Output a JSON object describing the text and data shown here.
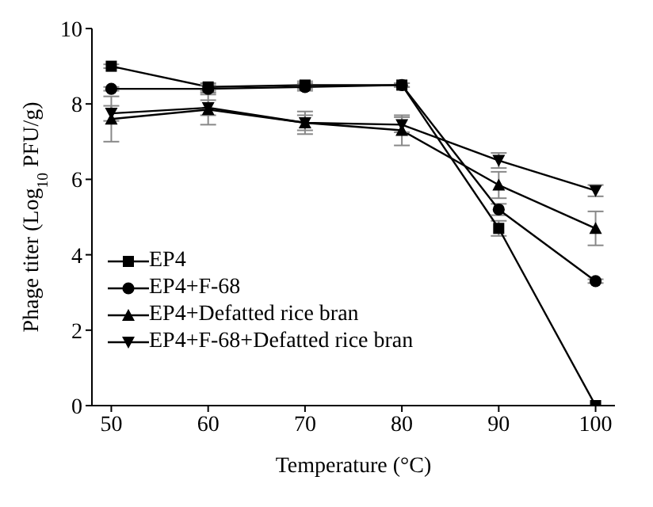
{
  "chart_data": {
    "type": "line",
    "xlabel": "Temperature (°C)",
    "ylabel": "Phage titer (Log$_{10}$ PFU/g)",
    "x": [
      50,
      60,
      70,
      80,
      90,
      100
    ],
    "xlim": [
      48,
      102
    ],
    "xticks": [
      50,
      60,
      70,
      80,
      90,
      100
    ],
    "ylim": [
      0,
      10
    ],
    "yticks": [
      0,
      2,
      4,
      6,
      8,
      10
    ],
    "legend": "left",
    "grid": false,
    "series": [
      {
        "name": "EP4",
        "color": "#000000",
        "marker": "square",
        "values": [
          9.0,
          8.45,
          8.5,
          8.5,
          4.7,
          0
        ],
        "errors": [
          0.05,
          0.1,
          0.1,
          0.05,
          0.2,
          null
        ]
      },
      {
        "name": "EP4+F-68",
        "color": "#000000",
        "marker": "circle",
        "values": [
          8.4,
          8.4,
          8.45,
          8.5,
          5.2,
          3.3
        ],
        "errors": [
          0.05,
          0.1,
          0.1,
          0.05,
          0.15,
          0.05
        ]
      },
      {
        "name": "EP4+Defatted rice bran",
        "color": "#000000",
        "marker": "triangle",
        "values": [
          7.6,
          7.85,
          7.5,
          7.3,
          5.85,
          4.7
        ],
        "errors": [
          0.6,
          0.4,
          0.3,
          0.4,
          0.35,
          0.45
        ]
      },
      {
        "name": "EP4+F-68+Defatted rice bran",
        "color": "#000000",
        "marker": "triangle-down",
        "values": [
          7.75,
          7.9,
          7.5,
          7.45,
          6.5,
          5.7
        ],
        "errors": [
          0.2,
          0.2,
          0.2,
          0.2,
          0.2,
          0.15
        ]
      }
    ]
  }
}
